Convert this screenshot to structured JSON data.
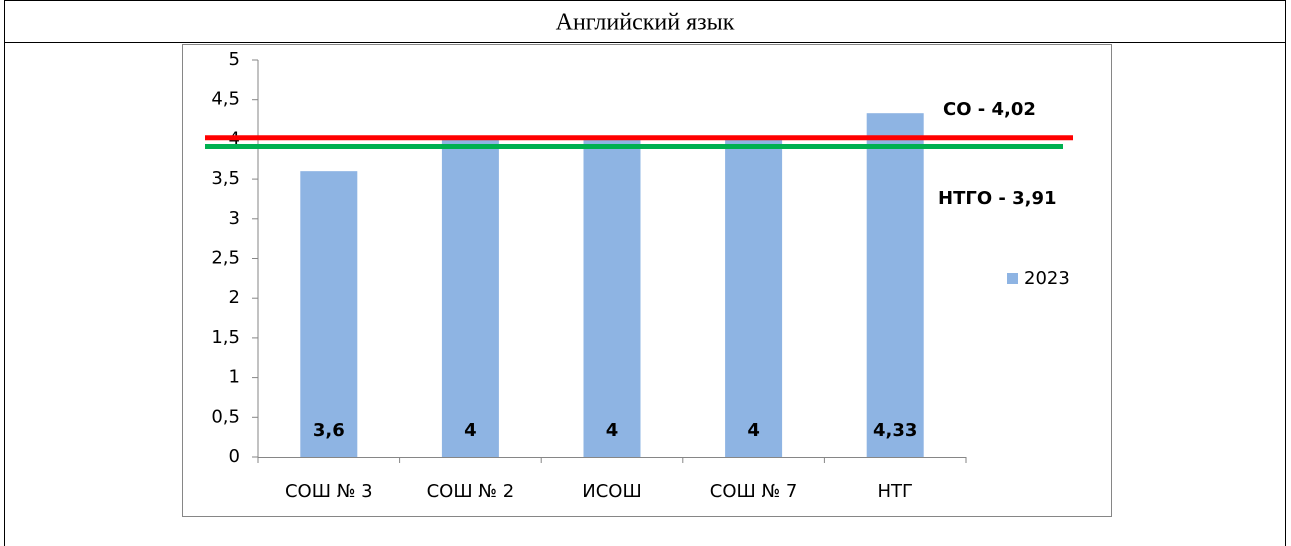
{
  "chart_data": {
    "type": "bar",
    "title": "Английский язык",
    "categories": [
      "СОШ № 3",
      "СОШ № 2",
      "ИСОШ",
      "СОШ № 7",
      "НТГ"
    ],
    "series": [
      {
        "name": "2023",
        "color": "#8eb4e3",
        "values": [
          3.6,
          4,
          4,
          4,
          4.33
        ],
        "value_labels": [
          "3,6",
          "4",
          "4",
          "4",
          "4,33"
        ]
      }
    ],
    "ylim": [
      0,
      5
    ],
    "yticks": [
      0,
      {
        "value": 0.5,
        "label": "0,5"
      },
      1,
      {
        "value": 1.5,
        "label": "1,5"
      },
      2,
      {
        "value": 2.5,
        "label": "2,5"
      },
      3,
      {
        "value": 3.5,
        "label": "3,5"
      },
      4,
      {
        "value": 4.5,
        "label": "4,5"
      },
      5
    ],
    "grid": false,
    "legend": "right",
    "reference_lines": [
      {
        "label": "СО - 4,02",
        "value": 4.02,
        "color": "#ff0000"
      },
      {
        "label": "НТГО - 3,91",
        "value": 3.91,
        "color": "#00b050"
      }
    ]
  }
}
